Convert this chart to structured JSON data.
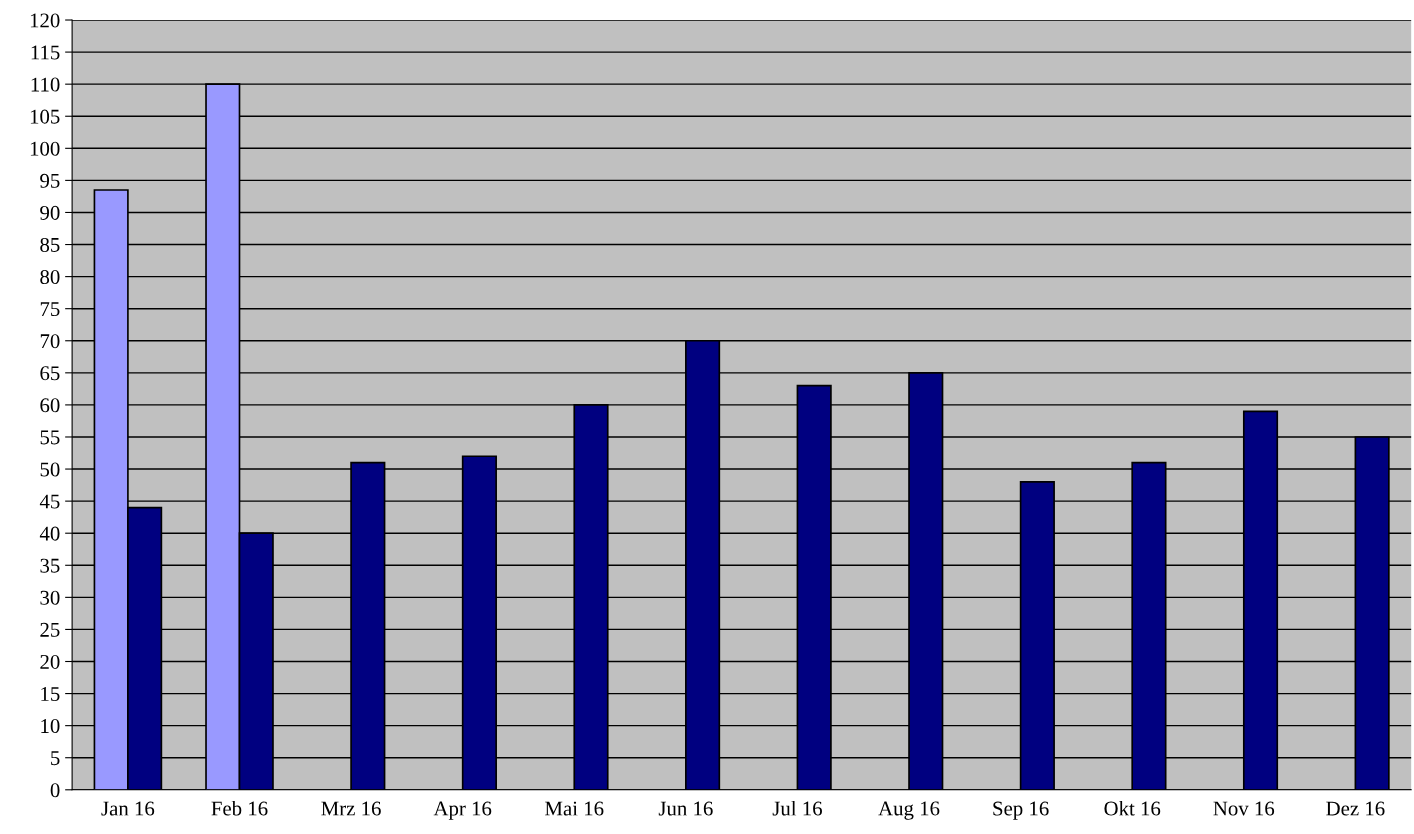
{
  "chart_data": {
    "type": "bar",
    "categories": [
      "Jan 16",
      "Feb 16",
      "Mrz 16",
      "Apr 16",
      "Mai 16",
      "Jun 16",
      "Jul 16",
      "Aug 16",
      "Sep 16",
      "Okt 16",
      "Nov 16",
      "Dez 16"
    ],
    "series": [
      {
        "color": "#9999ff",
        "values": [
          93.5,
          110,
          null,
          null,
          null,
          null,
          null,
          null,
          null,
          null,
          null,
          null
        ]
      },
      {
        "color": "#000080",
        "values": [
          44,
          40,
          51,
          52,
          60,
          70,
          63,
          65,
          48,
          51,
          59,
          55
        ]
      }
    ],
    "ylim": [
      0,
      120
    ],
    "yticks": [
      0,
      5,
      10,
      15,
      20,
      25,
      30,
      35,
      40,
      45,
      50,
      55,
      60,
      65,
      70,
      75,
      80,
      85,
      90,
      95,
      100,
      105,
      110,
      115,
      120
    ],
    "grid": "y",
    "legend": false
  }
}
